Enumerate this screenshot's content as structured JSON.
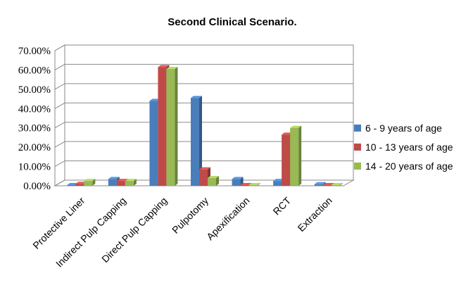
{
  "chart_data": {
    "type": "bar",
    "title": "Second Clinical Scenario.",
    "xlabel": "",
    "ylabel": "",
    "ylim": [
      0,
      70
    ],
    "yticks": [
      "0.00%",
      "10.00%",
      "20.00%",
      "30.00%",
      "40.00%",
      "50.00%",
      "60.00%",
      "70.00%"
    ],
    "categories": [
      "Protective Liner",
      "Indirect Pulp Capping",
      "Direct Pulp Capping",
      "Pulpotomy",
      "Apexification",
      "RCT",
      "Extraction"
    ],
    "series": [
      {
        "name": "6 - 9 years of age",
        "color": "#4a7ebb",
        "values": [
          0.3,
          3.5,
          44.0,
          45.5,
          3.5,
          2.5,
          0.8
        ]
      },
      {
        "name": "10 - 13 years of age",
        "color": "#be4b48",
        "values": [
          1.0,
          2.5,
          61.5,
          8.5,
          0.3,
          26.5,
          0.3
        ]
      },
      {
        "name": "14 - 20 years of age",
        "color": "#98b954",
        "values": [
          2.5,
          2.5,
          60.5,
          4.0,
          0.0,
          30.0,
          0.3
        ]
      }
    ],
    "grid": true,
    "legend_position": "right",
    "style": "3d-clustered-bar"
  }
}
